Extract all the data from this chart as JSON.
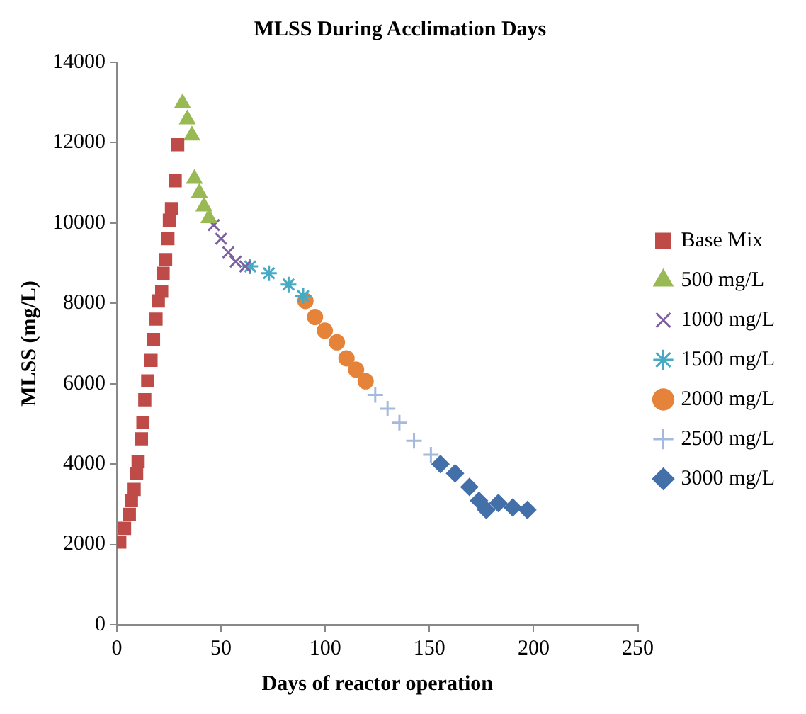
{
  "chart_data": {
    "type": "scatter",
    "title": "MLSS During Acclimation Days",
    "xlabel": "Days of reactor operation",
    "ylabel": "MLSS (mg/L)",
    "xlim": [
      0,
      250
    ],
    "xticks": [
      0,
      50,
      100,
      150,
      200,
      250
    ],
    "ylim": [
      0,
      14000
    ],
    "yticks": [
      0,
      2000,
      4000,
      6000,
      8000,
      10000,
      12000,
      14000
    ],
    "grid": false,
    "legend": "right",
    "series": [
      {
        "name": "Base Mix",
        "color": "#be4b48",
        "marker": "square",
        "x": [
          1.4,
          3.7,
          6,
          7,
          8.3,
          9.5,
          10.2,
          11.8,
          12.5,
          13.4,
          14.8,
          16.4,
          17.6,
          18.8,
          19.9,
          21.5,
          22.2,
          23.4,
          24.5,
          25.2,
          26.2,
          28,
          29.2
        ],
        "values": [
          2060,
          2400,
          2750,
          3090,
          3370,
          3770,
          4060,
          4630,
          5040,
          5600,
          6070,
          6580,
          7100,
          7610,
          8060,
          8300,
          8750,
          9090,
          9610,
          10070,
          10360,
          11050,
          11950
        ]
      },
      {
        "name": "500 mg/L",
        "color": "#98b954",
        "marker": "triangle",
        "x": [
          31.5,
          33.8,
          36,
          37.2,
          39.6,
          41.8,
          44.2
        ],
        "values": [
          12980,
          12580,
          12180,
          11100,
          10750,
          10410,
          10120
        ]
      },
      {
        "name": "1000 mg/L",
        "color": "#7d60a0",
        "marker": "cross",
        "x": [
          46.5,
          50,
          53.5,
          57,
          61.6
        ],
        "values": [
          9950,
          9610,
          9270,
          9040,
          8920
        ]
      },
      {
        "name": "1500 mg/L",
        "color": "#46aac5",
        "marker": "cross",
        "x": [
          64,
          73,
          82.4,
          89.4
        ],
        "values": [
          8920,
          8750,
          8470,
          8180
        ]
      },
      {
        "name": "2000 mg/L",
        "color": "#e5833a",
        "marker": "circle",
        "x": [
          90.5,
          95.1,
          99.8,
          105.6,
          110.2,
          114.8,
          119.4
        ],
        "values": [
          8060,
          7660,
          7320,
          7030,
          6630,
          6350,
          6060
        ]
      },
      {
        "name": "2500 mg/L",
        "color": "#a5b9dd",
        "marker": "cross",
        "x": [
          124,
          129.9,
          135.6,
          142.6,
          150.7
        ],
        "values": [
          5720,
          5380,
          5030,
          4580,
          4230
        ]
      },
      {
        "name": "3000 mg/L",
        "color": "#4470aa",
        "marker": "diamond",
        "x": [
          155.3,
          162.3,
          169.2,
          173.8,
          177.3,
          183.1,
          190,
          197
        ],
        "values": [
          4000,
          3770,
          3430,
          3090,
          2860,
          3030,
          2920,
          2860
        ]
      }
    ]
  }
}
